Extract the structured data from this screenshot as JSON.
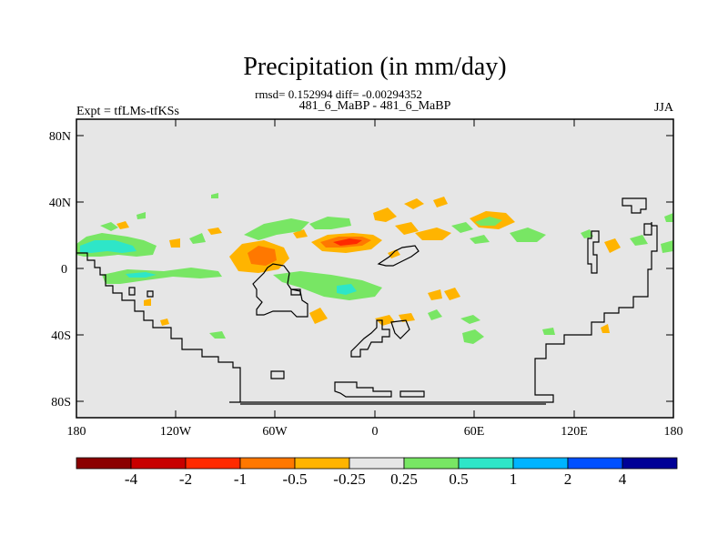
{
  "title": "Precipitation (in mm/day)",
  "stats_line": "rmsd= 0.152994 diff= -0.00294352",
  "cases_line": "481_6_MaBP - 481_6_MaBP",
  "expt_label": "Expt = tfLMs-tfKSs",
  "season": "JJA",
  "lat_ticks": [
    "80N",
    "40N",
    "0",
    "40S",
    "80S"
  ],
  "lon_ticks": [
    "180",
    "120W",
    "60W",
    "0",
    "60E",
    "120E",
    "180"
  ],
  "colorbar": {
    "labels": [
      "-4",
      "-2",
      "-1",
      "-0.5",
      "-0.25",
      "0.25",
      "0.5",
      "1",
      "2",
      "4"
    ],
    "colors": [
      "#8b0000",
      "#c80000",
      "#ff2a00",
      "#ff7800",
      "#ffb400",
      "#e6e6e6",
      "#78e664",
      "#2ee6c8",
      "#00b4ff",
      "#0050ff",
      "#000096"
    ]
  },
  "colors": {
    "background": "#e6e6e6",
    "coast": "#000000",
    "neg_weak": "#ffb400",
    "neg_mid": "#ff7800",
    "neg_strong": "#ff2a00",
    "pos_weak": "#78e664",
    "pos_mid": "#2ee6c8"
  },
  "chart_data": {
    "type": "heatmap",
    "variable": "Precipitation difference",
    "units": "mm/day",
    "projection": "cylindrical equidistant",
    "x_range_lon": [
      -180,
      180
    ],
    "y_range_lat": [
      -90,
      90
    ],
    "contour_levels": [
      -4,
      -2,
      -1,
      -0.5,
      -0.25,
      0.25,
      0.5,
      1,
      2,
      4
    ],
    "anomalies": [
      {
        "lon": -168,
        "lat": 12,
        "level": 1
      },
      {
        "lon": -170,
        "lat": 14,
        "level": 0.5
      },
      {
        "lon": -118,
        "lat": -4,
        "level": 1
      },
      {
        "lon": -120,
        "lat": -4,
        "level": 0.5
      },
      {
        "lon": -85,
        "lat": 5,
        "level": -1
      },
      {
        "lon": -82,
        "lat": 4,
        "level": -0.5
      },
      {
        "lon": -68,
        "lat": 22,
        "level": 0.5
      },
      {
        "lon": -40,
        "lat": -12,
        "level": 1
      },
      {
        "lon": -42,
        "lat": -10,
        "level": 0.5
      },
      {
        "lon": -20,
        "lat": 15,
        "level": -1
      },
      {
        "lon": -20,
        "lat": 15,
        "level": -0.5
      },
      {
        "lon": -12,
        "lat": 29,
        "level": -0.25
      },
      {
        "lon": 12,
        "lat": 27,
        "level": -0.25
      },
      {
        "lon": 40,
        "lat": 22,
        "level": -0.25
      },
      {
        "lon": 75,
        "lat": 22,
        "level": 0.5
      },
      {
        "lon": 74,
        "lat": -15,
        "level": -0.25
      },
      {
        "lon": -30,
        "lat": -30,
        "level": -0.25
      },
      {
        "lon": 10,
        "lat": -30,
        "level": -0.25
      },
      {
        "lon": 60,
        "lat": -40,
        "level": 0.5
      },
      {
        "lon": 148,
        "lat": 12,
        "level": -0.25
      },
      {
        "lon": 168,
        "lat": 12,
        "level": 1
      }
    ]
  }
}
